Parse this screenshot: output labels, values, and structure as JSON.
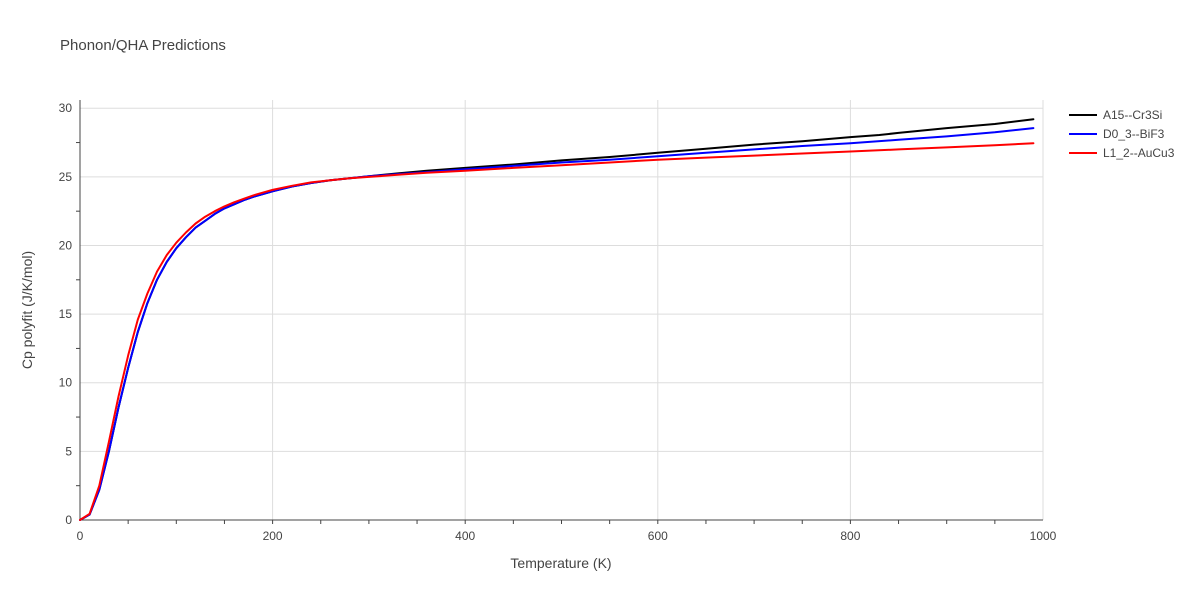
{
  "chart_data": {
    "type": "line",
    "title": "Phonon/QHA Predictions",
    "xlabel": "Temperature (K)",
    "ylabel": "Cp polyfit (J/K/mol)",
    "xlim": [
      0,
      1000
    ],
    "ylim": [
      0,
      30.6
    ],
    "x_ticks": [
      0,
      200,
      400,
      600,
      800,
      1000
    ],
    "y_ticks": [
      0,
      5,
      10,
      15,
      20,
      25,
      30
    ],
    "x_tick_labels": [
      "0",
      "200",
      "400",
      "600",
      "800",
      "1000"
    ],
    "y_tick_labels": [
      "0",
      "5",
      "10",
      "15",
      "20",
      "25",
      "30"
    ],
    "grid": true,
    "legend_position": "top-right",
    "series": [
      {
        "name": "A15--Cr3Si",
        "color": "#000000",
        "x": [
          0,
          10,
          20,
          30,
          40,
          50,
          60,
          70,
          80,
          90,
          100,
          110,
          120,
          130,
          140,
          150,
          160,
          170,
          180,
          190,
          200,
          220,
          240,
          260,
          280,
          300,
          330,
          360,
          400,
          450,
          500,
          550,
          600,
          650,
          700,
          750,
          800,
          830,
          850,
          900,
          950,
          990
        ],
        "y": [
          0,
          0.4,
          2.2,
          5.0,
          8.2,
          11.1,
          13.7,
          15.8,
          17.5,
          18.8,
          19.8,
          20.6,
          21.3,
          21.8,
          22.3,
          22.7,
          23.0,
          23.3,
          23.55,
          23.75,
          23.95,
          24.3,
          24.55,
          24.75,
          24.9,
          25.05,
          25.25,
          25.45,
          25.65,
          25.9,
          26.2,
          26.45,
          26.75,
          27.05,
          27.35,
          27.6,
          27.9,
          28.05,
          28.2,
          28.55,
          28.85,
          29.2
        ]
      },
      {
        "name": "D0_3--BiF3",
        "color": "#0000ff",
        "x": [
          0,
          10,
          20,
          30,
          40,
          50,
          60,
          70,
          80,
          90,
          100,
          110,
          120,
          130,
          140,
          150,
          160,
          170,
          180,
          190,
          200,
          220,
          240,
          260,
          280,
          300,
          330,
          360,
          400,
          450,
          500,
          550,
          600,
          650,
          700,
          750,
          800,
          850,
          900,
          950,
          990
        ],
        "y": [
          0,
          0.4,
          2.2,
          5.0,
          8.2,
          11.1,
          13.7,
          15.8,
          17.5,
          18.8,
          19.8,
          20.6,
          21.3,
          21.8,
          22.3,
          22.7,
          23.0,
          23.3,
          23.55,
          23.75,
          23.95,
          24.3,
          24.55,
          24.75,
          24.9,
          25.05,
          25.2,
          25.35,
          25.55,
          25.8,
          26.05,
          26.25,
          26.5,
          26.75,
          27.0,
          27.25,
          27.45,
          27.7,
          27.95,
          28.25,
          28.55
        ]
      },
      {
        "name": "L1_2--AuCu3",
        "color": "#ff0000",
        "x": [
          0,
          10,
          20,
          30,
          40,
          50,
          60,
          70,
          80,
          90,
          100,
          110,
          120,
          130,
          140,
          150,
          160,
          170,
          180,
          190,
          200,
          220,
          240,
          260,
          280,
          300,
          330,
          360,
          400,
          450,
          500,
          550,
          600,
          650,
          700,
          750,
          800,
          850,
          900,
          950,
          990
        ],
        "y": [
          0,
          0.45,
          2.5,
          5.7,
          9.0,
          12.0,
          14.6,
          16.5,
          18.1,
          19.3,
          20.2,
          20.95,
          21.6,
          22.1,
          22.5,
          22.85,
          23.15,
          23.4,
          23.65,
          23.85,
          24.05,
          24.35,
          24.6,
          24.75,
          24.9,
          25.0,
          25.15,
          25.3,
          25.45,
          25.65,
          25.85,
          26.05,
          26.25,
          26.4,
          26.55,
          26.7,
          26.85,
          27.0,
          27.15,
          27.3,
          27.45
        ]
      }
    ]
  }
}
